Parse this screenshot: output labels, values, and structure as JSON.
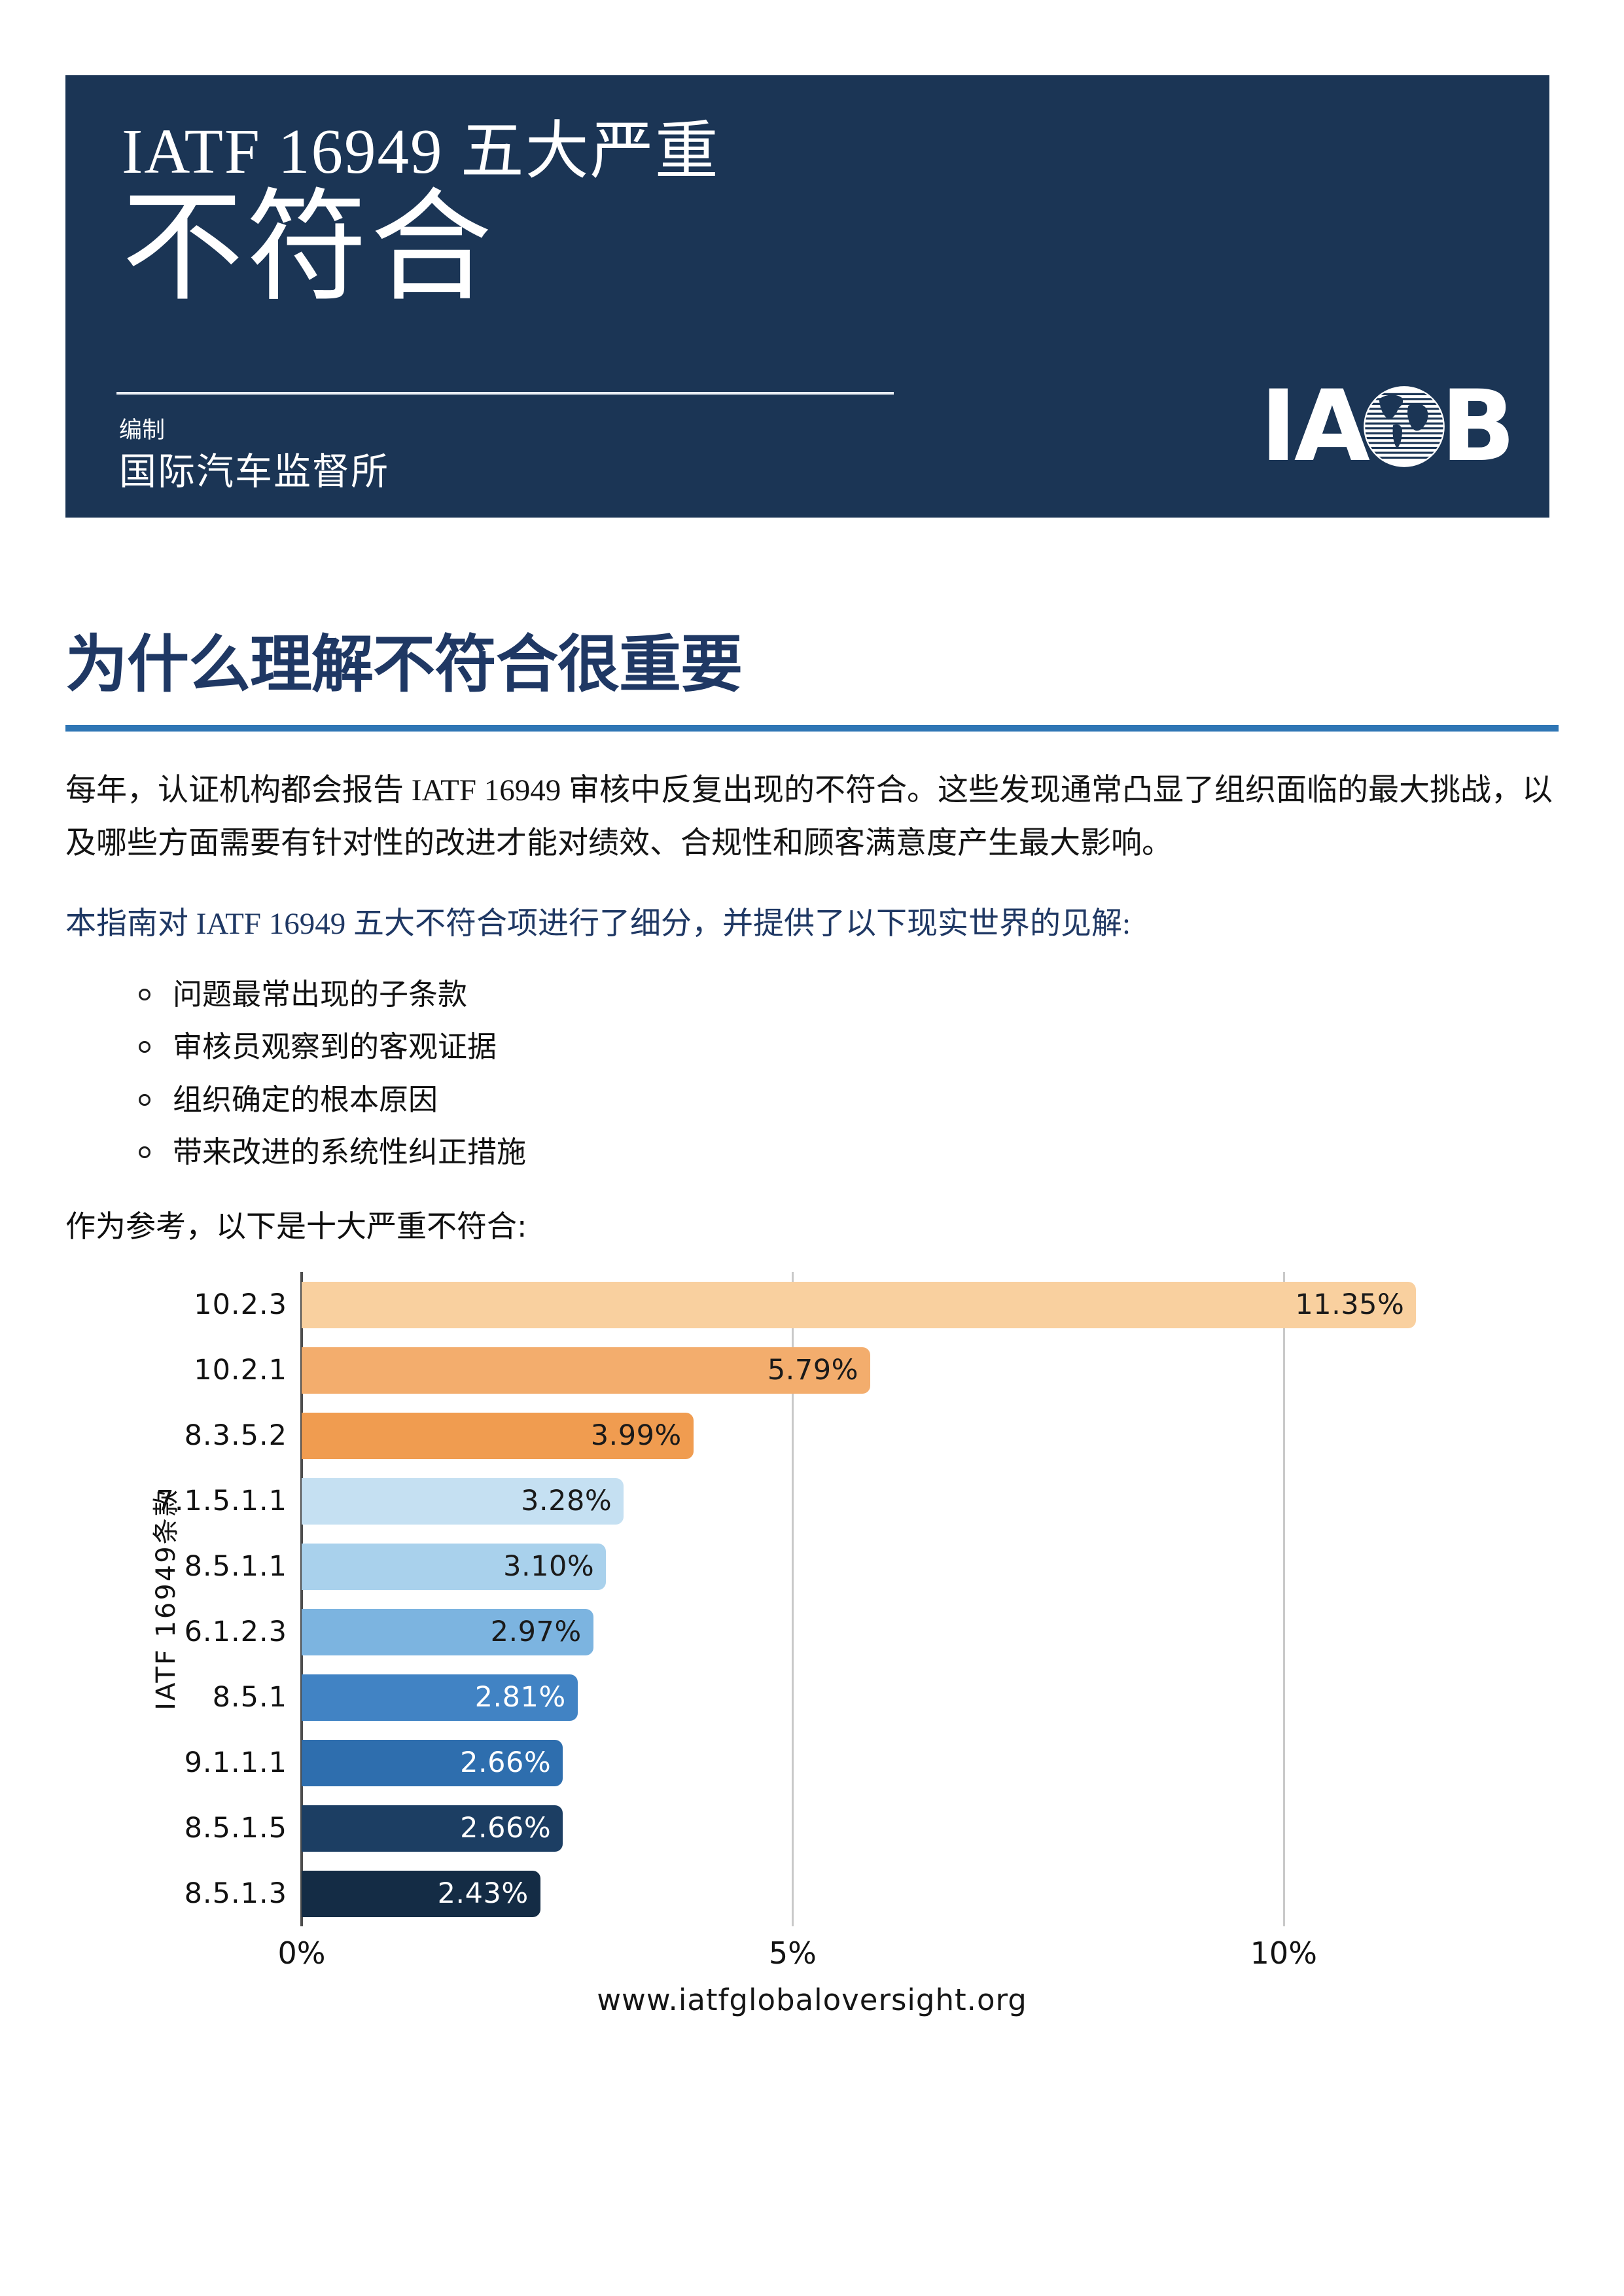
{
  "colors": {
    "header_bg": "#1B3555",
    "rule": "#2F76B5",
    "heading": "#1F3864",
    "body_text": "#141414",
    "axis": "#4D4D4D",
    "gridline": "#C9C9C9"
  },
  "header": {
    "title_line1": "IATF 16949 五大严重",
    "title_line2": "不符合",
    "prepared_label": "编制",
    "prepared_by": "国际汽车监督所",
    "logo": {
      "name": "IAOB",
      "text_left": "IA",
      "text_right": "B"
    }
  },
  "section": {
    "heading": "为什么理解不符合很重要",
    "paragraph1": "每年，认证机构都会报告 IATF 16949 审核中反复出现的不符合。这些发现通常凸显了组织面临的最大挑战，以及哪些方面需要有针对性的改进才能对绩效、合规性和顾客满意度产生最大影响。",
    "paragraph2": "本指南对 IATF 16949 五大不符合项进行了细分，并提供了以下现实世界的见解:",
    "bullets": [
      "问题最常出现的子条款",
      "审核员观察到的客观证据",
      "组织确定的根本原因",
      "带来改进的系统性纠正措施"
    ],
    "reference_line": "作为参考，以下是十大严重不符合:"
  },
  "chart_data": {
    "type": "bar",
    "orientation": "horizontal",
    "title": "",
    "xlabel": "",
    "ylabel": "IATF 16949条款",
    "categories": [
      "10.2.3",
      "10.2.1",
      "8.3.5.2",
      "7.1.5.1.1",
      "8.5.1.1",
      "6.1.2.3",
      "8.5.1",
      "9.1.1.1",
      "8.5.1.5",
      "8.5.1.3"
    ],
    "values": [
      11.35,
      5.79,
      3.99,
      3.28,
      3.1,
      2.97,
      2.81,
      2.66,
      2.66,
      2.43
    ],
    "value_labels": [
      "11.35%",
      "5.79%",
      "3.99%",
      "3.28%",
      "3.10%",
      "2.97%",
      "2.81%",
      "2.66%",
      "2.66%",
      "2.43%"
    ],
    "bar_colors": [
      "#F9D09F",
      "#F3AD6D",
      "#F09C50",
      "#C5E0F2",
      "#A9D1EC",
      "#7CB4E0",
      "#4183C4",
      "#2E6EAE",
      "#1C3E63",
      "#142C45"
    ],
    "value_label_colors": [
      "#1a1a1a",
      "#1a1a1a",
      "#1a1a1a",
      "#1a1a1a",
      "#1a1a1a",
      "#1a1a1a",
      "#ffffff",
      "#ffffff",
      "#ffffff",
      "#ffffff"
    ],
    "xlim": [
      0,
      12.8
    ],
    "x_ticks": [
      {
        "label": "0%",
        "value": 0
      },
      {
        "label": "5%",
        "value": 5
      },
      {
        "label": "10%",
        "value": 10
      }
    ],
    "grid": "vertical",
    "legend": "none"
  },
  "footer": {
    "url": "www.iatfglobaloversight.org"
  }
}
